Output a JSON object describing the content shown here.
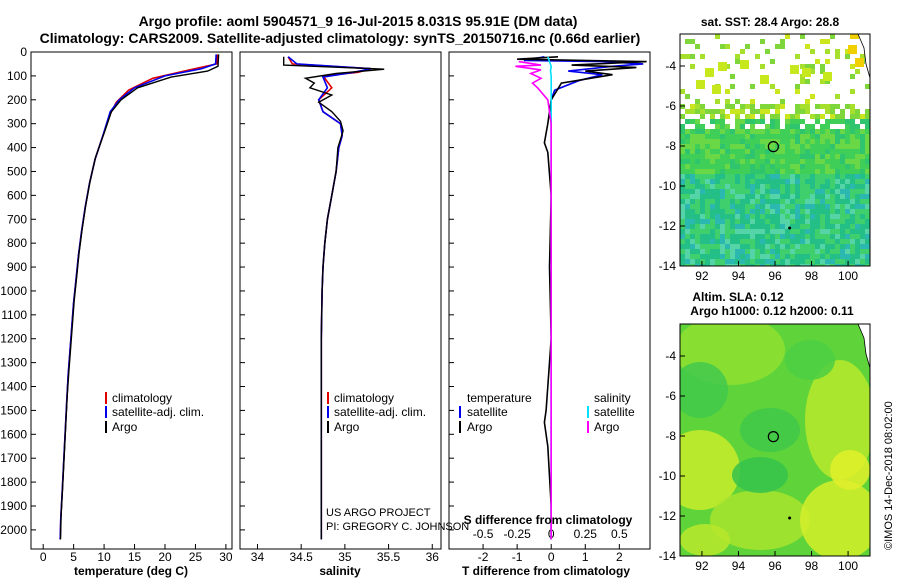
{
  "header": {
    "title_line1": "Argo profile: aoml 5904571_9 16-Jul-2015 8.031S 95.91E (DM data)",
    "title_line2": "Climatology: CARS2009. Satellite-adjusted climatology: synTS_20150716.nc (0.66d earlier)"
  },
  "footer": {
    "credits_line1": "US ARGO PROJECT",
    "credits_line2": "PI: GREGORY C. JOHNSON",
    "watermark": "©IMOS 14-Dec-2018 08:02:00"
  },
  "colors": {
    "climatology": "#e00000",
    "satellite": "#0000ee",
    "argo": "#000000",
    "sal_satellite": "#00e0ff",
    "sal_argo": "#ff00ff"
  },
  "chart_data": [
    {
      "type": "line",
      "name": "temperature-profile",
      "xlabel": "temperature (deg C)",
      "ylabel": "",
      "xlim": [
        -2,
        31
      ],
      "ylim": [
        2080,
        0
      ],
      "x_ticks": [
        "0",
        "5",
        "10",
        "15",
        "20",
        "25",
        "30"
      ],
      "y_ticks": [
        "0",
        "100",
        "200",
        "300",
        "400",
        "500",
        "600",
        "700",
        "800",
        "900",
        "1000",
        "1100",
        "1200",
        "1300",
        "1400",
        "1500",
        "1600",
        "1700",
        "1800",
        "1900",
        "2000"
      ],
      "legend": [
        "climatology",
        "satellite-adj. clim.",
        "Argo"
      ],
      "series": [
        {
          "name": "climatology",
          "points": [
            [
              28.6,
              10
            ],
            [
              28.5,
              50
            ],
            [
              24,
              75
            ],
            [
              18,
              110
            ],
            [
              14,
              160
            ],
            [
              12,
              210
            ],
            [
              11,
              260
            ],
            [
              9.8,
              350
            ],
            [
              8.5,
              450
            ],
            [
              7.6,
              550
            ],
            [
              6.9,
              650
            ],
            [
              6.3,
              750
            ],
            [
              5.8,
              850
            ],
            [
              5.4,
              950
            ],
            [
              5,
              1050
            ],
            [
              4.7,
              1150
            ],
            [
              4.4,
              1250
            ],
            [
              4.1,
              1350
            ],
            [
              3.9,
              1450
            ],
            [
              3.7,
              1550
            ],
            [
              3.5,
              1650
            ],
            [
              3.3,
              1750
            ],
            [
              3.1,
              1850
            ],
            [
              2.9,
              1950
            ],
            [
              2.8,
              2040
            ]
          ]
        },
        {
          "name": "satellite-adj. clim.",
          "points": [
            [
              28.4,
              10
            ],
            [
              28.3,
              50
            ],
            [
              26,
              70
            ],
            [
              20,
              100
            ],
            [
              15,
              150
            ],
            [
              12.5,
              200
            ],
            [
              11,
              250
            ],
            [
              9.8,
              350
            ],
            [
              8.5,
              450
            ],
            [
              7.6,
              550
            ],
            [
              6.9,
              650
            ],
            [
              6.3,
              750
            ],
            [
              5.8,
              850
            ],
            [
              5.4,
              950
            ],
            [
              5,
              1050
            ],
            [
              4.7,
              1150
            ],
            [
              4.4,
              1250
            ],
            [
              4.1,
              1350
            ],
            [
              3.9,
              1450
            ],
            [
              3.7,
              1550
            ],
            [
              3.5,
              1650
            ],
            [
              3.3,
              1750
            ],
            [
              3.1,
              1850
            ],
            [
              2.9,
              1950
            ],
            [
              2.8,
              2040
            ]
          ]
        },
        {
          "name": "Argo",
          "points": [
            [
              28.8,
              10
            ],
            [
              28.7,
              60
            ],
            [
              27,
              80
            ],
            [
              21,
              105
            ],
            [
              15.5,
              150
            ],
            [
              12.8,
              200
            ],
            [
              11.2,
              250
            ],
            [
              10,
              340
            ],
            [
              8.6,
              440
            ],
            [
              7.7,
              540
            ],
            [
              7,
              640
            ],
            [
              6.4,
              740
            ],
            [
              5.9,
              840
            ],
            [
              5.5,
              940
            ],
            [
              5.1,
              1040
            ],
            [
              4.8,
              1140
            ],
            [
              4.5,
              1240
            ],
            [
              4.2,
              1340
            ],
            [
              3.95,
              1440
            ],
            [
              3.75,
              1540
            ],
            [
              3.55,
              1640
            ],
            [
              3.35,
              1740
            ],
            [
              3.15,
              1840
            ],
            [
              2.95,
              1940
            ],
            [
              2.85,
              2040
            ]
          ]
        }
      ]
    },
    {
      "type": "line",
      "name": "salinity-profile",
      "xlabel": "salinity",
      "xlim": [
        33.8,
        36.1
      ],
      "ylim": [
        2080,
        0
      ],
      "x_ticks": [
        "34",
        "34.5",
        "35",
        "35.5",
        "36"
      ],
      "legend": [
        "climatology",
        "satellite-adj. clim.",
        "Argo"
      ],
      "series": [
        {
          "name": "climatology",
          "points": [
            [
              34.35,
              20
            ],
            [
              34.4,
              50
            ],
            [
              35.3,
              70
            ],
            [
              35.15,
              85
            ],
            [
              34.75,
              100
            ],
            [
              34.85,
              150
            ],
            [
              34.7,
              200
            ],
            [
              34.75,
              250
            ],
            [
              34.95,
              300
            ],
            [
              34.97,
              350
            ],
            [
              34.93,
              400
            ],
            [
              34.9,
              500
            ],
            [
              34.85,
              600
            ],
            [
              34.8,
              700
            ],
            [
              34.77,
              800
            ],
            [
              34.75,
              900
            ],
            [
              34.74,
              1000
            ],
            [
              34.73,
              1200
            ],
            [
              34.73,
              1400
            ],
            [
              34.73,
              1600
            ],
            [
              34.73,
              1800
            ],
            [
              34.73,
              2040
            ]
          ]
        },
        {
          "name": "satellite-adj. clim.",
          "points": [
            [
              34.35,
              20
            ],
            [
              34.45,
              50
            ],
            [
              35.3,
              70
            ],
            [
              35.1,
              85
            ],
            [
              34.75,
              105
            ],
            [
              34.8,
              150
            ],
            [
              34.7,
              200
            ],
            [
              34.75,
              250
            ],
            [
              34.95,
              300
            ],
            [
              34.97,
              350
            ],
            [
              34.93,
              400
            ],
            [
              34.9,
              500
            ],
            [
              34.85,
              600
            ],
            [
              34.8,
              700
            ],
            [
              34.77,
              800
            ],
            [
              34.75,
              900
            ],
            [
              34.74,
              1000
            ],
            [
              34.73,
              1200
            ],
            [
              34.73,
              1400
            ],
            [
              34.73,
              1600
            ],
            [
              34.73,
              1800
            ],
            [
              34.73,
              2040
            ]
          ]
        },
        {
          "name": "Argo",
          "points": [
            [
              34.3,
              20
            ],
            [
              34.3,
              55
            ],
            [
              35.45,
              72
            ],
            [
              34.9,
              90
            ],
            [
              34.55,
              110
            ],
            [
              34.65,
              130
            ],
            [
              34.6,
              150
            ],
            [
              34.85,
              180
            ],
            [
              34.7,
              210
            ],
            [
              34.85,
              250
            ],
            [
              34.95,
              290
            ],
            [
              34.98,
              330
            ],
            [
              34.92,
              400
            ],
            [
              34.9,
              500
            ],
            [
              34.85,
              600
            ],
            [
              34.8,
              700
            ],
            [
              34.77,
              800
            ],
            [
              34.75,
              900
            ],
            [
              34.74,
              1000
            ],
            [
              34.73,
              1200
            ],
            [
              34.73,
              1400
            ],
            [
              34.73,
              1600
            ],
            [
              34.73,
              1800
            ],
            [
              34.73,
              2040
            ]
          ]
        }
      ]
    },
    {
      "type": "line",
      "name": "difference-profile",
      "xlabel": "T difference from climatology",
      "top_xlabel": "S difference from climatology",
      "xlim": [
        -3,
        2.9
      ],
      "ylim": [
        2080,
        0
      ],
      "x_ticks": [
        "-2",
        "-1",
        "0",
        "1",
        "2"
      ],
      "top_x_ticks": [
        "-0.5",
        "-0.25",
        "0",
        "0.25",
        "0.5"
      ],
      "legend_temperature_title": "temperature",
      "legend_salinity_title": "salinity",
      "legend_temperature": [
        "satellite",
        "Argo"
      ],
      "legend_salinity": [
        "satellite",
        "Argo"
      ],
      "series": [
        {
          "name": "T satellite",
          "points": [
            [
              -0.2,
              20
            ],
            [
              -0.8,
              35
            ],
            [
              1.5,
              40
            ],
            [
              2.7,
              50
            ],
            [
              1.8,
              60
            ],
            [
              0.5,
              80
            ],
            [
              1.5,
              95
            ],
            [
              0.8,
              120
            ],
            [
              0.1,
              160
            ],
            [
              0,
              200
            ],
            [
              0,
              400
            ],
            [
              0,
              600
            ],
            [
              0,
              2040
            ]
          ]
        },
        {
          "name": "T Argo",
          "points": [
            [
              0.2,
              20
            ],
            [
              -1,
              30
            ],
            [
              2.8,
              40
            ],
            [
              0.6,
              55
            ],
            [
              2.5,
              65
            ],
            [
              1,
              80
            ],
            [
              1.8,
              95
            ],
            [
              0.3,
              130
            ],
            [
              0,
              200
            ],
            [
              -0.1,
              300
            ],
            [
              -0.2,
              380
            ],
            [
              -0.1,
              420
            ],
            [
              0,
              600
            ],
            [
              -0.05,
              900
            ],
            [
              0,
              1200
            ],
            [
              -0.1,
              1400
            ],
            [
              -0.15,
              1500
            ],
            [
              -0.2,
              1550
            ],
            [
              -0.1,
              1650
            ],
            [
              0,
              1900
            ],
            [
              0,
              2040
            ]
          ]
        },
        {
          "name": "S satellite",
          "points": [
            [
              -0.1,
              20
            ],
            [
              -0.05,
              40
            ],
            [
              0,
              60
            ],
            [
              -0.02,
              80
            ],
            [
              0,
              100
            ],
            [
              0,
              400
            ],
            [
              0,
              1000
            ],
            [
              0,
              2040
            ]
          ]
        },
        {
          "name": "S Argo",
          "points": [
            [
              -0.95,
              40
            ],
            [
              -0.3,
              55
            ],
            [
              -1.05,
              60
            ],
            [
              -0.3,
              75
            ],
            [
              -0.6,
              90
            ],
            [
              -0.3,
              110
            ],
            [
              -0.55,
              130
            ],
            [
              -0.4,
              150
            ],
            [
              -0.1,
              200
            ],
            [
              0,
              300
            ],
            [
              0,
              2040
            ]
          ]
        }
      ]
    },
    {
      "type": "heatmap",
      "name": "sst-map",
      "title": "sat. SST: 28.4 Argo: 28.8",
      "xlim": [
        90.8,
        101.2
      ],
      "ylim": [
        -14,
        -2.4
      ],
      "x_ticks": [
        "92",
        "94",
        "96",
        "98",
        "100"
      ],
      "y_ticks": [
        "-4",
        "-6",
        "-8",
        "-10",
        "-12",
        "-14"
      ],
      "float_marker": {
        "lon": 95.91,
        "lat": -8.031
      },
      "argo_value": 28.8,
      "satellite_value": 28.4
    },
    {
      "type": "heatmap",
      "name": "sla-map",
      "title_line1": "Altim. SLA: 0.12",
      "title_line2": "Argo h1000: 0.12 h2000: 0.11",
      "xlim": [
        90.8,
        101.2
      ],
      "ylim": [
        -14,
        -2.4
      ],
      "x_ticks": [
        "92",
        "94",
        "96",
        "98",
        "100"
      ],
      "y_ticks": [
        "-4",
        "-6",
        "-8",
        "-10",
        "-12",
        "-14"
      ],
      "float_marker": {
        "lon": 95.91,
        "lat": -8.031
      },
      "sla": 0.12,
      "h1000": 0.12,
      "h2000": 0.11
    }
  ]
}
